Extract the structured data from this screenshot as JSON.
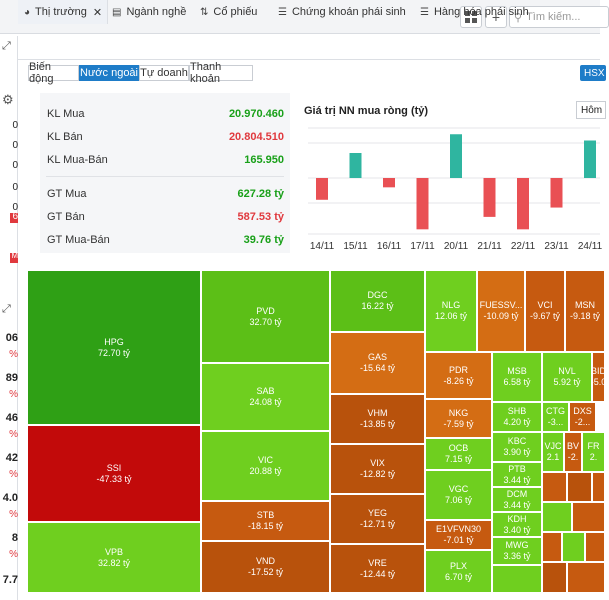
{
  "toolbar": {
    "search_placeholder": "Tìm kiếm..."
  },
  "tabs": [
    "Thị trường",
    "Ngành nghề",
    "Cổ phiếu",
    "Chứng khoán phái sinh",
    "Hàng hóa phái sinh"
  ],
  "subtabs": [
    "Biến động",
    "Nước ngoài",
    "Tự doanh",
    "Thanh khoản"
  ],
  "exchange_button": "HSX",
  "left_values": [
    "0",
    "0",
    "0",
    "0",
    "0",
    "6",
    "M",
    "06",
    "%",
    "89",
    "%",
    "46",
    "%",
    "42",
    "%",
    "4.0",
    "%",
    "8",
    "%",
    "7.7"
  ],
  "stats": [
    {
      "label": "KL Mua",
      "value": "20.970.460"
    },
    {
      "label": "KL Bán",
      "value": "20.804.510"
    },
    {
      "label": "KL Mua-Bán",
      "value": "165.950"
    },
    {
      "label": "GT Mua",
      "value": "627.28 tỷ"
    },
    {
      "label": "GT Bán",
      "value": "587.53 tỷ"
    },
    {
      "label": "GT Mua-Bán",
      "value": "39.76 tỷ"
    }
  ],
  "chart_title": "Giá trị NN mua ròng (tỷ)",
  "period_select": "Hôm",
  "colors": {
    "positive": "#2fb5a0",
    "negative": "#e95054",
    "accent": "#1e7cc8"
  },
  "chart_data": {
    "type": "bar",
    "title": "Giá trị NN mua ròng (tỷ)",
    "categories": [
      "14/11",
      "15/11",
      "16/11",
      "17/11",
      "20/11",
      "21/11",
      "22/11",
      "23/11",
      "24/11"
    ],
    "values": [
      -70,
      60,
      -30,
      -165,
      105,
      -125,
      -165,
      -95,
      90
    ],
    "ylim": [
      -180,
      120
    ]
  },
  "heatmap": [
    {
      "ticker": "HPG",
      "value": "72.70 tỷ"
    },
    {
      "ticker": "SSI",
      "value": "-47.33 tỷ"
    },
    {
      "ticker": "VPB",
      "value": "32.82 tỷ"
    },
    {
      "ticker": "PVD",
      "value": "32.70 tỷ"
    },
    {
      "ticker": "SAB",
      "value": "24.08 tỷ"
    },
    {
      "ticker": "VIC",
      "value": "20.88 tỷ"
    },
    {
      "ticker": "STB",
      "value": "-18.15 tỷ"
    },
    {
      "ticker": "VND",
      "value": "-17.52 tỷ"
    },
    {
      "ticker": "DGC",
      "value": "16.22 tỷ"
    },
    {
      "ticker": "GAS",
      "value": "-15.64 tỷ"
    },
    {
      "ticker": "VHM",
      "value": "-13.85 tỷ"
    },
    {
      "ticker": "VIX",
      "value": "-12.82 tỷ"
    },
    {
      "ticker": "YEG",
      "value": "-12.71 tỷ"
    },
    {
      "ticker": "VRE",
      "value": "-12.44 tỷ"
    },
    {
      "ticker": "NLG",
      "value": "12.06 tỷ"
    },
    {
      "ticker": "PDR",
      "value": "-8.26 tỷ"
    },
    {
      "ticker": "NKG",
      "value": "-7.59 tỷ"
    },
    {
      "ticker": "OCB",
      "value": "7.15 tỷ"
    },
    {
      "ticker": "VGC",
      "value": "7.06 tỷ"
    },
    {
      "ticker": "E1VFVN30",
      "value": "-7.01 tỷ"
    },
    {
      "ticker": "PLX",
      "value": "6.70 tỷ"
    },
    {
      "ticker": "FUESSV...",
      "value": "-10.09 tỷ"
    },
    {
      "ticker": "VCI",
      "value": "-9.67 tỷ"
    },
    {
      "ticker": "MSN",
      "value": "-9.18 tỷ"
    },
    {
      "ticker": "MSB",
      "value": "6.58 tỷ"
    },
    {
      "ticker": "NVL",
      "value": "5.92 tỷ"
    },
    {
      "ticker": "BID",
      "value": "-5.0"
    },
    {
      "ticker": "SHB",
      "value": "4.20 tỷ"
    },
    {
      "ticker": "KBC",
      "value": "3.90 tỷ"
    },
    {
      "ticker": "PTB",
      "value": "3.44 tỷ"
    },
    {
      "ticker": "DCM",
      "value": "3.44 tỷ"
    },
    {
      "ticker": "KDH",
      "value": "3.40 tỷ"
    },
    {
      "ticker": "MWG",
      "value": "3.36 tỷ"
    },
    {
      "ticker": "CTG",
      "value": "-3..."
    },
    {
      "ticker": "DXS",
      "value": "-2..."
    },
    {
      "ticker": "VJC",
      "value": "2.1"
    },
    {
      "ticker": "BV",
      "value": "-2."
    },
    {
      "ticker": "FR",
      "value": "2."
    }
  ]
}
